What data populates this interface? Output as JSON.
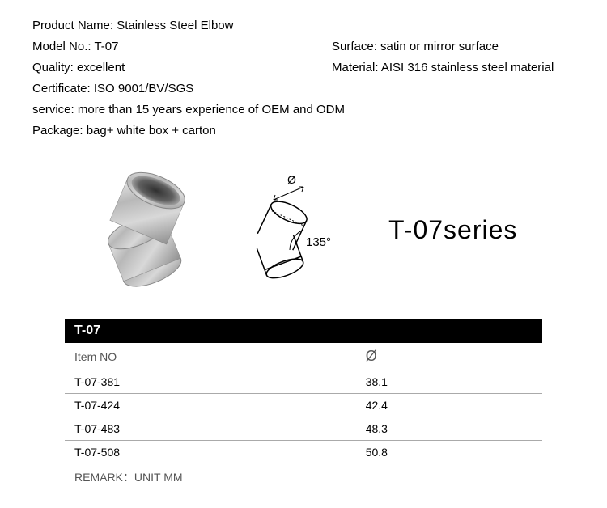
{
  "specs": {
    "productName": {
      "label": "Product Name:",
      "value": "Stainless Steel Elbow"
    },
    "modelNo": {
      "label": "Model No.:",
      "value": "T-07"
    },
    "surface": {
      "label": "Surface:",
      "value": "satin or mirror surface"
    },
    "quality": {
      "label": "Quality:",
      "value": "excellent"
    },
    "material": {
      "label": "Material:",
      "value": "AISI 316 stainless steel material"
    },
    "certificate": {
      "label": "Certificate:",
      "value": "ISO 9001/BV/SGS"
    },
    "service": {
      "label": "service:",
      "value": "more than 15 years experience of OEM and ODM"
    },
    "package": {
      "label": "Package:",
      "value": "bag+ white box + carton"
    }
  },
  "diagram": {
    "angleLabel": "135°",
    "diameterSymbol": "Ø"
  },
  "seriesLabel": "T-07series",
  "table": {
    "title": "T-07",
    "headers": {
      "itemNo": "Item NO",
      "diameter": "Ø"
    },
    "rows": [
      {
        "itemNo": "T-07-381",
        "diameter": "38.1"
      },
      {
        "itemNo": "T-07-424",
        "diameter": "42.4"
      },
      {
        "itemNo": "T-07-483",
        "diameter": "48.3"
      },
      {
        "itemNo": "T-07-508",
        "diameter": "50.8"
      }
    ],
    "remark": "REMARK：UNIT MM"
  },
  "colors": {
    "tableHeaderBg": "#000000",
    "tableHeaderText": "#ffffff",
    "borderColor": "#aaaaaa",
    "textColor": "#000000"
  }
}
